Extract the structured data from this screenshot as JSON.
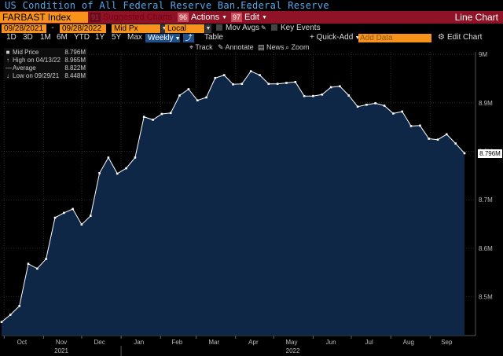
{
  "title": {
    "security_description": "US Condition of All Federal Reserve Ban...",
    "source": "Federal Reserve"
  },
  "toolbar": {
    "security": "FARBAST Index",
    "suggested_charts": "Suggested Charts",
    "suggested_num": "91",
    "actions_num": "96",
    "actions": "Actions",
    "edit_num": "97",
    "edit": "Edit",
    "chart_type": "Line Chart"
  },
  "controls": {
    "start_date": "09/28/2021",
    "end_date": "09/28/2022",
    "price_field": "Mid Px",
    "currency": "Local CCY",
    "mov_avgs": "Mov Avgs",
    "key_events": "Key Events"
  },
  "periods": [
    "1D",
    "3D",
    "1M",
    "6M",
    "YTD",
    "1Y",
    "5Y",
    "Max"
  ],
  "frequency": "Weekly",
  "table_label": "Table",
  "quick_add": "Quick-Add",
  "add_data_placeholder": "Add Data",
  "edit_chart": "Edit Chart",
  "chart_tools": [
    "Track",
    "Annotate",
    "News",
    "Zoom"
  ],
  "legend": [
    {
      "marker": "■",
      "name": "Mid Price",
      "value": "8.796M"
    },
    {
      "marker": "↑",
      "name": "High on 04/13/22",
      "value": "8.965M"
    },
    {
      "marker": "―",
      "name": "Average",
      "value": "8.822M"
    },
    {
      "marker": "↓",
      "name": "Low on 09/29/21",
      "value": "8.448M"
    }
  ],
  "last_value_label": "8.796M",
  "colors": {
    "accent_orange": "#f7931a",
    "bar_red": "#8e1326",
    "title_blue": "#58a6e8",
    "area_fill": "#0f2747",
    "line": "#ffffff"
  },
  "chart_data": {
    "type": "area",
    "x_ticks": [
      "Oct",
      "Nov",
      "Dec",
      "Jan",
      "Feb",
      "Mar",
      "Apr",
      "May",
      "Jun",
      "Jul",
      "Aug",
      "Sep"
    ],
    "x_years": [
      "2021",
      "2022"
    ],
    "y_ticks": [
      "8.5M",
      "8.6M",
      "8.7M",
      "8.8M",
      "8.9M",
      "9M"
    ],
    "ylim": [
      8.42,
      9.005
    ],
    "grid": true,
    "series": [
      {
        "name": "Mid Price",
        "x": [
          "2021-09-29",
          "2021-10-06",
          "2021-10-13",
          "2021-10-20",
          "2021-10-27",
          "2021-11-03",
          "2021-11-10",
          "2021-11-17",
          "2021-11-24",
          "2021-12-01",
          "2021-12-08",
          "2021-12-15",
          "2021-12-22",
          "2021-12-29",
          "2022-01-05",
          "2022-01-12",
          "2022-01-19",
          "2022-01-26",
          "2022-02-02",
          "2022-02-09",
          "2022-02-16",
          "2022-02-23",
          "2022-03-02",
          "2022-03-09",
          "2022-03-16",
          "2022-03-23",
          "2022-03-30",
          "2022-04-06",
          "2022-04-13",
          "2022-04-20",
          "2022-04-27",
          "2022-05-04",
          "2022-05-11",
          "2022-05-18",
          "2022-05-25",
          "2022-06-01",
          "2022-06-08",
          "2022-06-15",
          "2022-06-22",
          "2022-06-29",
          "2022-07-06",
          "2022-07-13",
          "2022-07-20",
          "2022-07-27",
          "2022-08-03",
          "2022-08-10",
          "2022-08-17",
          "2022-08-24",
          "2022-08-31",
          "2022-09-07",
          "2022-09-14",
          "2022-09-21",
          "2022-09-28"
        ],
        "values": [
          8.448,
          8.463,
          8.481,
          8.568,
          8.558,
          8.578,
          8.663,
          8.673,
          8.681,
          8.649,
          8.667,
          8.755,
          8.787,
          8.754,
          8.765,
          8.787,
          8.871,
          8.865,
          8.877,
          8.879,
          8.915,
          8.928,
          8.905,
          8.911,
          8.951,
          8.957,
          8.938,
          8.939,
          8.965,
          8.957,
          8.939,
          8.939,
          8.941,
          8.943,
          8.914,
          8.914,
          8.917,
          8.932,
          8.934,
          8.915,
          8.892,
          8.896,
          8.899,
          8.894,
          8.878,
          8.882,
          8.852,
          8.853,
          8.826,
          8.824,
          8.835,
          8.816,
          8.796
        ]
      }
    ]
  }
}
